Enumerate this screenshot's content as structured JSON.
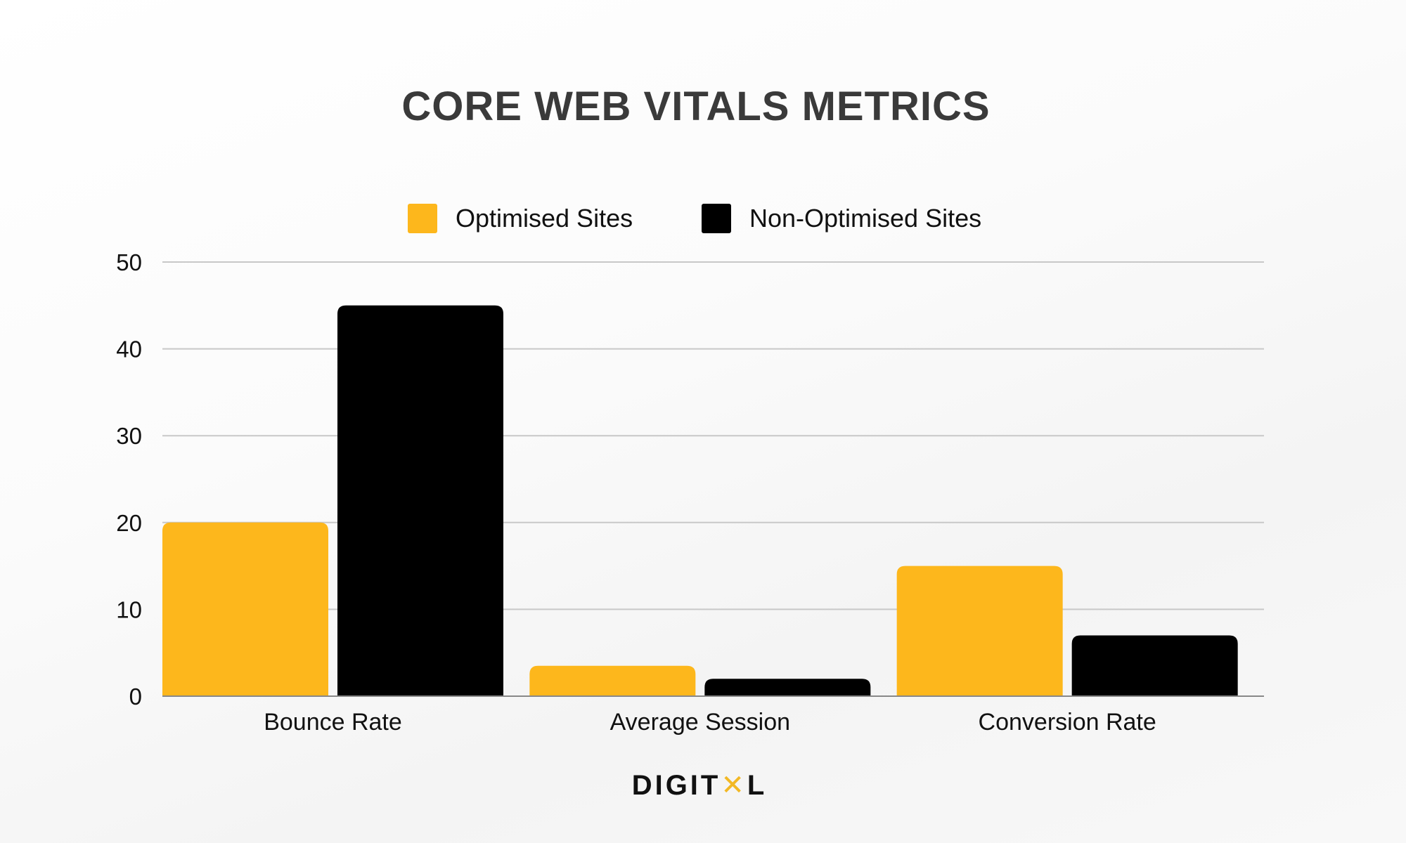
{
  "chart_data": {
    "type": "bar",
    "title": "CORE WEB VITALS METRICS",
    "categories": [
      "Bounce Rate",
      "Average Session",
      "Conversion Rate"
    ],
    "series": [
      {
        "name": "Optimised Sites",
        "color": "#FDB71C",
        "values": [
          20,
          3.5,
          15
        ]
      },
      {
        "name": "Non-Optimised Sites",
        "color": "#000000",
        "values": [
          45,
          2,
          7
        ]
      }
    ],
    "ylim": [
      0,
      50
    ],
    "yticks": [
      0,
      10,
      20,
      30,
      40,
      50
    ],
    "xlabel": "",
    "ylabel": "",
    "grid": true,
    "legend": "top-center"
  },
  "brand": {
    "logo_text": "DIGITXL"
  }
}
